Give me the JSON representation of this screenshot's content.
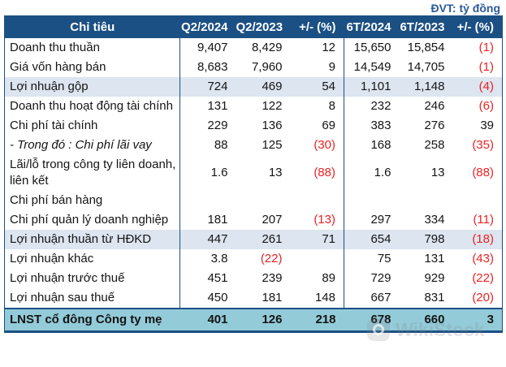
{
  "unit_label": "ĐVT: tỷ đồng",
  "watermark": "WikiStock",
  "colors": {
    "header_bg": "#1b5084",
    "highlight_bg": "#dce5f0",
    "total_bg": "#93cbd9",
    "negative": "#ed2224",
    "unit_text": "#2d5a9b"
  },
  "chart_data": {
    "type": "table",
    "title": "",
    "unit": "tỷ đồng",
    "columns": [
      "Chỉ tiêu",
      "Q2/2024",
      "Q2/2023",
      "+/- (%)",
      "6T/2024",
      "6T/2023",
      "+/- (%)"
    ],
    "rows": [
      {
        "label": "Doanh thu thuần",
        "variant": "normal",
        "values": [
          "9,407",
          "8,429",
          "12",
          "15,650",
          "15,854",
          "(1)"
        ]
      },
      {
        "label": "Giá vốn hàng bán",
        "variant": "normal",
        "values": [
          "8,683",
          "7,960",
          "9",
          "14,549",
          "14,705",
          "(1)"
        ]
      },
      {
        "label": "Lợi nhuận gộp",
        "variant": "highlight",
        "values": [
          "724",
          "469",
          "54",
          "1,101",
          "1,148",
          "(4)"
        ]
      },
      {
        "label": "Doanh thu hoạt động tài chính",
        "variant": "normal",
        "values": [
          "131",
          "122",
          "8",
          "232",
          "246",
          "(6)"
        ]
      },
      {
        "label": "Chi phí tài chính",
        "variant": "normal",
        "values": [
          "229",
          "136",
          "69",
          "383",
          "276",
          "39"
        ]
      },
      {
        "label": "- Trong đó : Chi phí lãi vay",
        "variant": "italic",
        "values": [
          "88",
          "125",
          "(30)",
          "168",
          "258",
          "(35)"
        ]
      },
      {
        "label": "Lãi/lỗ trong công ty liên doanh, liên kết",
        "variant": "normal",
        "values": [
          "1.6",
          "13",
          "(88)",
          "1.6",
          "13",
          "(88)"
        ]
      },
      {
        "label": "Chi phí bán hàng",
        "variant": "normal",
        "values": [
          "",
          "",
          "",
          "",
          "",
          ""
        ]
      },
      {
        "label": "Chi phí quản lý doanh nghiệp",
        "variant": "normal",
        "values": [
          "181",
          "207",
          "(13)",
          "297",
          "334",
          "(11)"
        ]
      },
      {
        "label": "Lợi nhuận thuần từ HĐKD",
        "variant": "highlight",
        "values": [
          "447",
          "261",
          "71",
          "654",
          "798",
          "(18)"
        ]
      },
      {
        "label": "Lợi nhuận khác",
        "variant": "normal",
        "values": [
          "3.8",
          "(22)",
          "",
          "75",
          "131",
          "(43)"
        ]
      },
      {
        "label": "Lợi nhuận trước thuế",
        "variant": "normal",
        "values": [
          "451",
          "239",
          "89",
          "729",
          "929",
          "(22)"
        ]
      },
      {
        "label": "Lợi nhuận sau thuế",
        "variant": "normal",
        "values": [
          "450",
          "181",
          "148",
          "667",
          "831",
          "(20)"
        ]
      },
      {
        "label": "LNST cổ đông Công ty mẹ",
        "variant": "total",
        "values": [
          "401",
          "126",
          "218",
          "678",
          "660",
          "3"
        ]
      }
    ]
  }
}
